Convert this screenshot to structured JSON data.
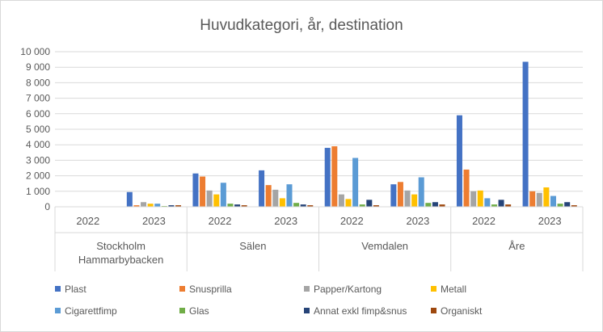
{
  "chart_data": {
    "type": "bar",
    "title": "Huvudkategori, år, destination",
    "xlabel": "",
    "ylabel": "",
    "ylim": [
      0,
      10000
    ],
    "y_ticks": [
      "0",
      "1 000",
      "2 000",
      "3 000",
      "4 000",
      "5 000",
      "6 000",
      "7 000",
      "8 000",
      "9 000",
      "10 000"
    ],
    "groups": [
      {
        "name": "Stockholm Hammarbybacken",
        "name_lines": [
          "Stockholm",
          "Hammarbybacken"
        ],
        "years": [
          "2022",
          "2023"
        ]
      },
      {
        "name": "Sälen",
        "name_lines": [
          "Sälen"
        ],
        "years": [
          "2022",
          "2023"
        ]
      },
      {
        "name": "Vemdalen",
        "name_lines": [
          "Vemdalen"
        ],
        "years": [
          "2022",
          "2023"
        ]
      },
      {
        "name": "Åre",
        "name_lines": [
          "Åre"
        ],
        "years": [
          "2022",
          "2023"
        ]
      }
    ],
    "categories": [
      "Stockholm Hammarbybacken 2022",
      "Stockholm Hammarbybacken 2023",
      "Sälen 2022",
      "Sälen 2023",
      "Vemdalen 2022",
      "Vemdalen 2023",
      "Åre 2022",
      "Åre 2023"
    ],
    "series": [
      {
        "name": "Plast",
        "color": "#4472c4",
        "values": [
          0,
          950,
          2150,
          2350,
          3800,
          1450,
          5900,
          9350
        ]
      },
      {
        "name": "Snusprilla",
        "color": "#ed7d31",
        "values": [
          0,
          100,
          1950,
          1400,
          3900,
          1600,
          2400,
          1000
        ]
      },
      {
        "name": "Papper/Kartong",
        "color": "#a5a5a5",
        "values": [
          0,
          300,
          1050,
          1100,
          800,
          1050,
          1000,
          900
        ]
      },
      {
        "name": "Metall",
        "color": "#ffc000",
        "values": [
          0,
          200,
          800,
          550,
          500,
          800,
          1050,
          1250
        ]
      },
      {
        "name": "Cigarettfimp",
        "color": "#5b9bd5",
        "values": [
          0,
          200,
          1550,
          1450,
          3150,
          1900,
          550,
          700
        ]
      },
      {
        "name": "Glas",
        "color": "#70ad47",
        "values": [
          0,
          50,
          200,
          250,
          150,
          250,
          150,
          200
        ]
      },
      {
        "name": "Annat exkl fimp&snus",
        "color": "#264478",
        "values": [
          0,
          100,
          150,
          150,
          450,
          300,
          450,
          300
        ]
      },
      {
        "name": "Organiskt",
        "color": "#9e480e",
        "values": [
          0,
          100,
          100,
          100,
          100,
          150,
          150,
          100
        ]
      }
    ],
    "legend_position": "bottom",
    "grid": true
  }
}
